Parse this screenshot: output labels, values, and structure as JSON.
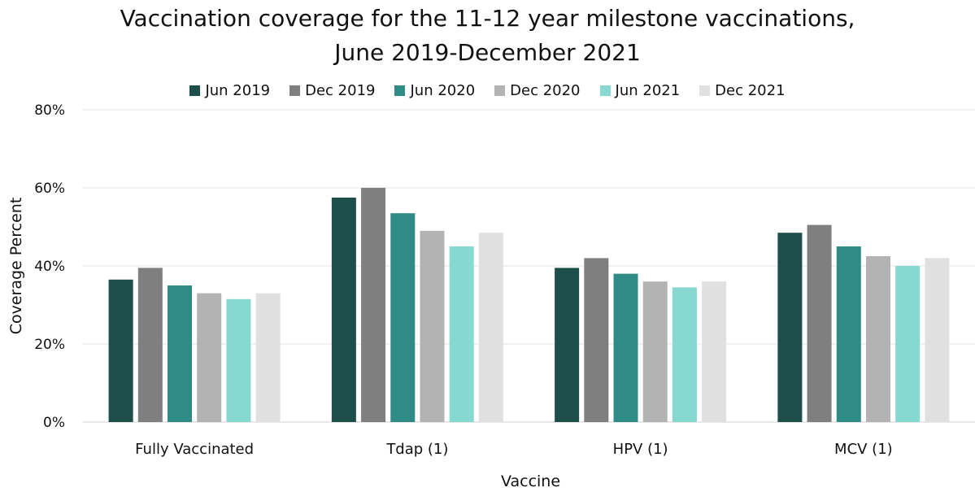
{
  "chart_data": {
    "type": "bar",
    "title": "Vaccination coverage for the 11-12 year milestone vaccinations,",
    "subtitle": "June 2019-December 2021",
    "xlabel": "Vaccine",
    "ylabel": "Coverage Percent",
    "ylim": [
      0,
      80
    ],
    "yticks": [
      "0%",
      "20%",
      "40%",
      "60%",
      "80%"
    ],
    "grid": true,
    "legend_position": "top",
    "categories": [
      "Fully Vaccinated",
      "Tdap (1)",
      "HPV (1)",
      "MCV (1)"
    ],
    "series": [
      {
        "name": "Jun 2019",
        "color": "#1c4e4a",
        "values": [
          36.5,
          57.5,
          39.5,
          48.5
        ]
      },
      {
        "name": "Dec 2019",
        "color": "#7f7f7f",
        "values": [
          39.5,
          60.0,
          42.0,
          50.5
        ]
      },
      {
        "name": "Jun 2020",
        "color": "#2e8b86",
        "values": [
          35.0,
          53.5,
          38.0,
          45.0
        ]
      },
      {
        "name": "Dec 2020",
        "color": "#b3b3b3",
        "values": [
          33.0,
          49.0,
          36.0,
          42.5
        ]
      },
      {
        "name": "Jun 2021",
        "color": "#88d8d2",
        "values": [
          31.5,
          45.0,
          34.5,
          40.0
        ]
      },
      {
        "name": "Dec 2021",
        "color": "#e0e0e0",
        "values": [
          33.0,
          48.5,
          36.0,
          42.0
        ]
      }
    ]
  }
}
